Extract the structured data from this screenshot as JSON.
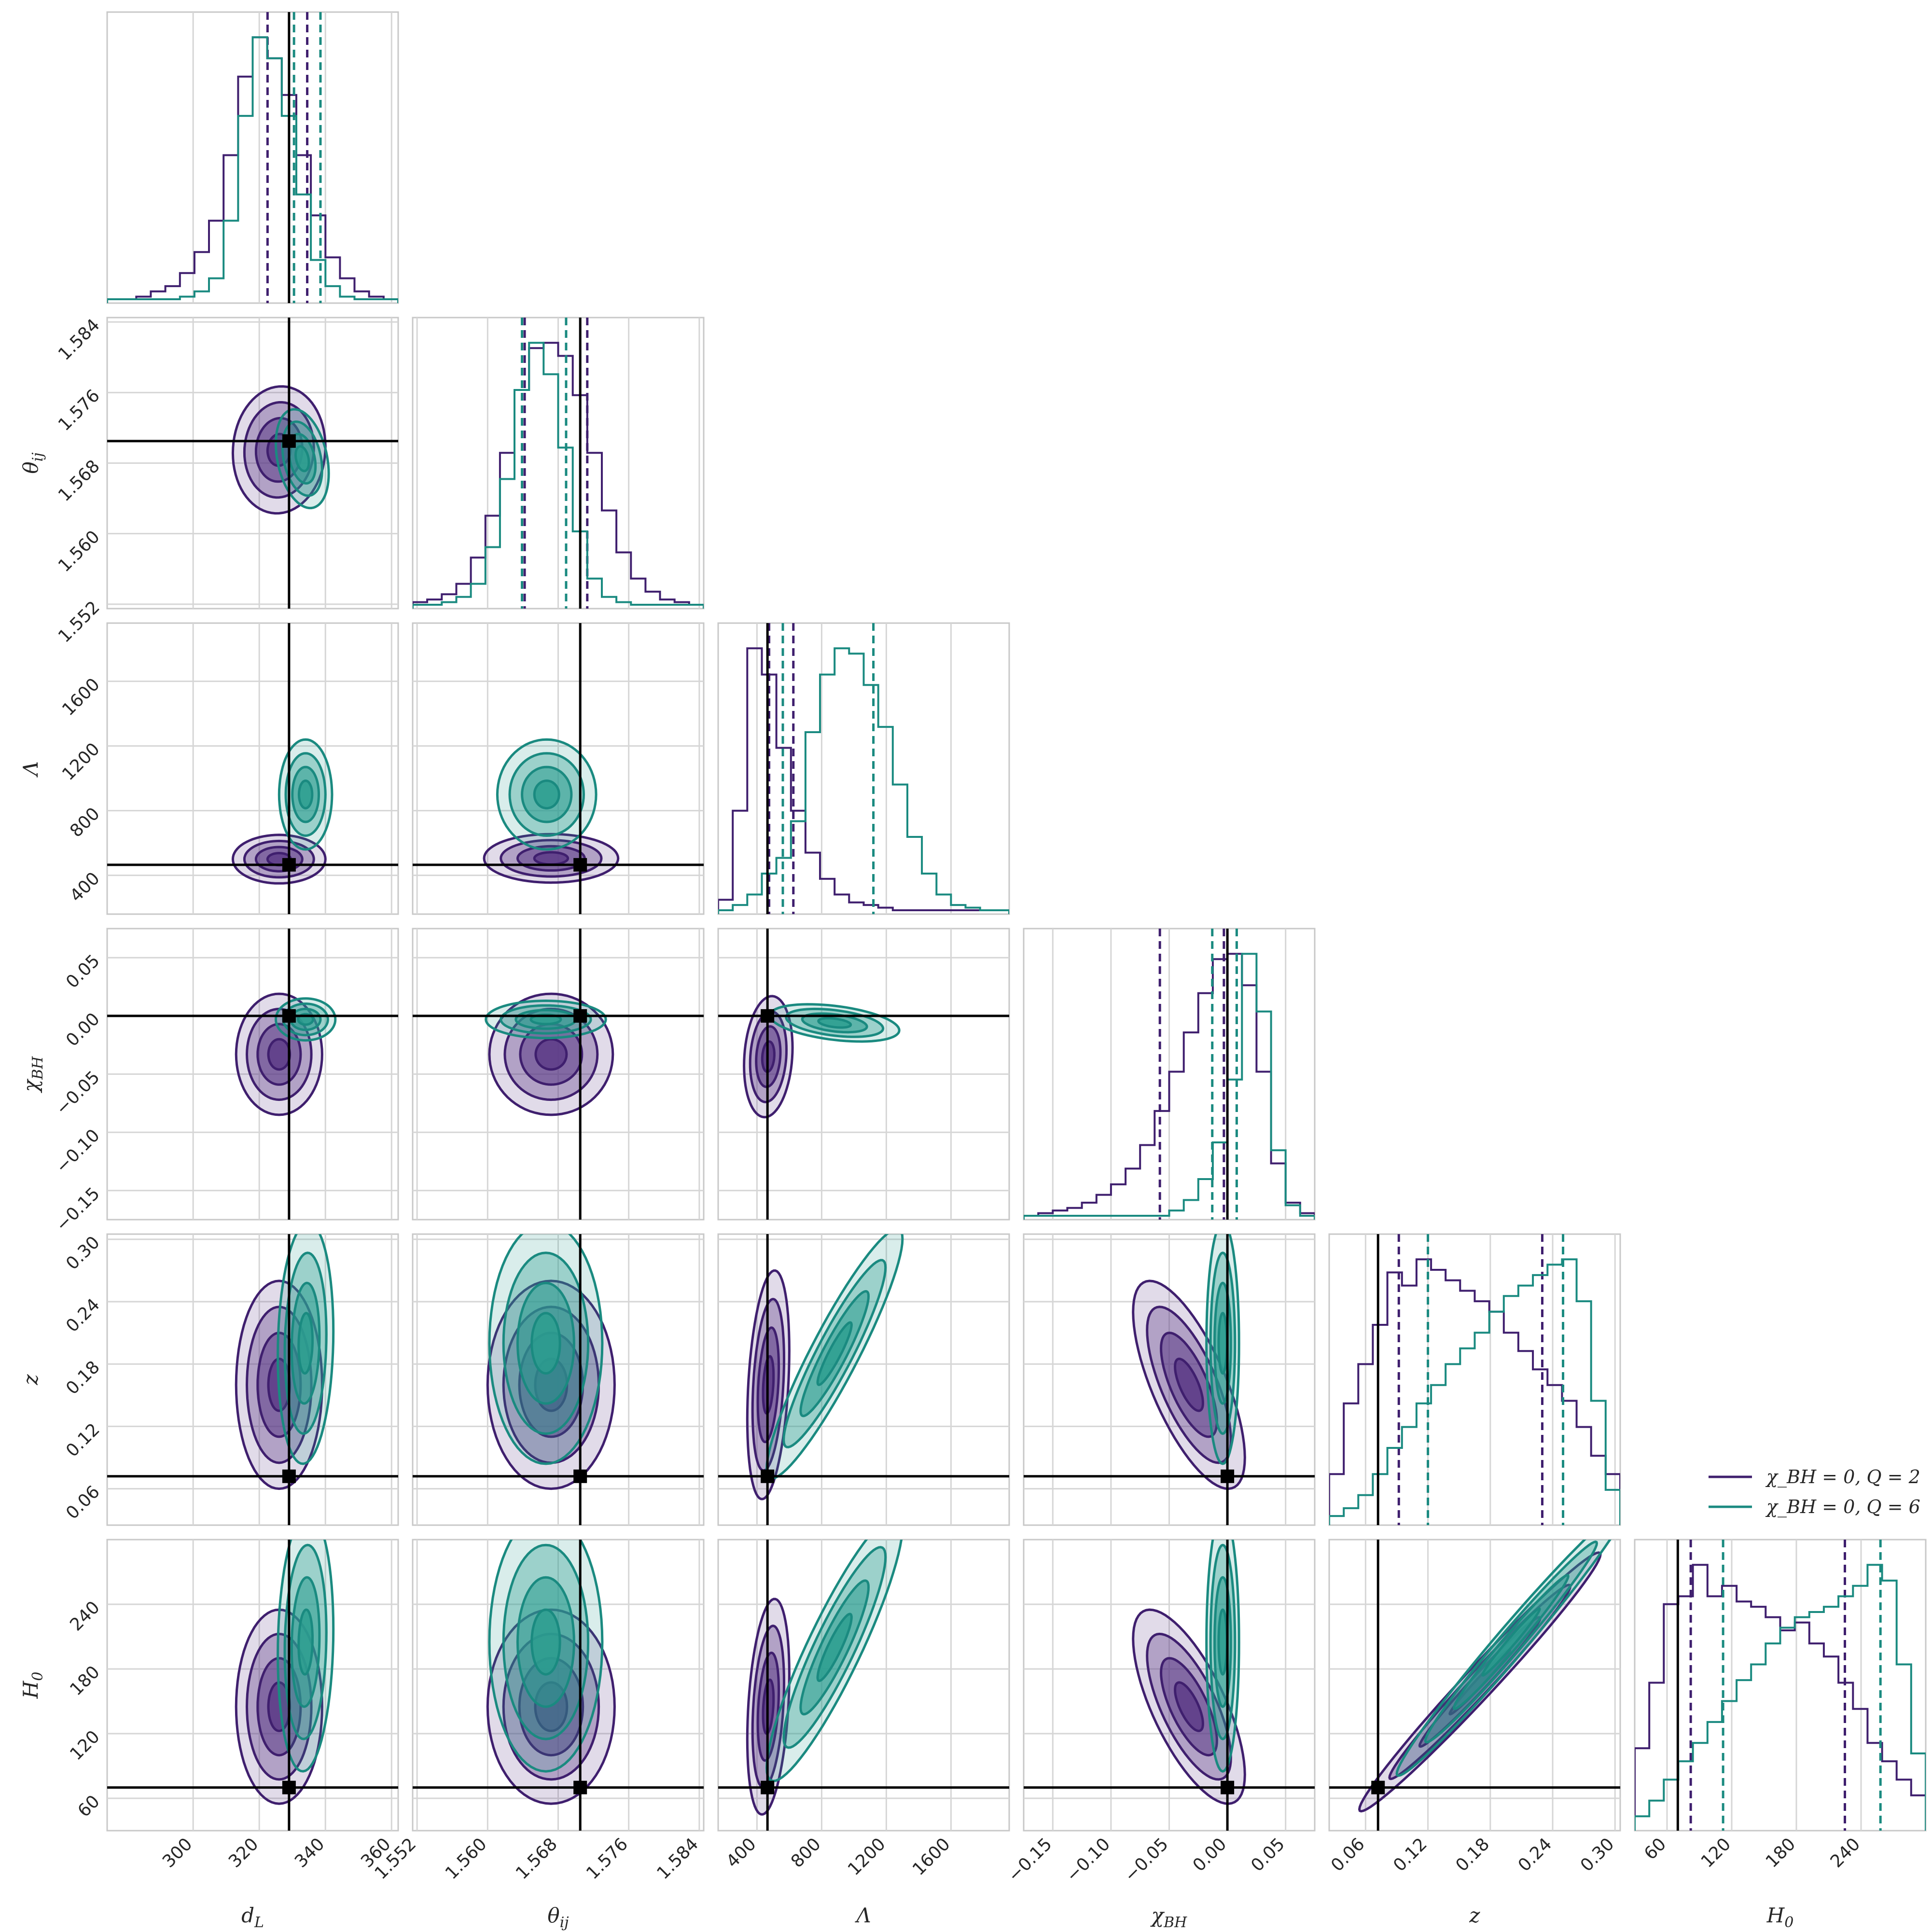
{
  "chart_data": {
    "type": "corner",
    "title": "",
    "parameters": [
      {
        "key": "dL",
        "label": "d_L",
        "range": [
          274,
          362
        ],
        "ticks": [
          300,
          320,
          340,
          360
        ],
        "tick_labels": [
          "300",
          "320",
          "340",
          "360"
        ],
        "truth": 329
      },
      {
        "key": "theta",
        "label": "θ_ij",
        "range": [
          1.5515,
          1.5845
        ],
        "ticks": [
          1.552,
          1.56,
          1.568,
          1.576,
          1.584
        ],
        "tick_labels": [
          "1.552",
          "1.560",
          "1.568",
          "1.576",
          "1.584"
        ],
        "truth": 1.5705
      },
      {
        "key": "Lambda",
        "label": "Λ",
        "range": [
          160,
          1960
        ],
        "ticks": [
          400,
          800,
          1200,
          1600
        ],
        "tick_labels": [
          "400",
          "800",
          "1200",
          "1600"
        ],
        "truth": 465
      },
      {
        "key": "chi",
        "label": "χ_BH",
        "range": [
          -0.175,
          0.075
        ],
        "ticks": [
          -0.15,
          -0.1,
          -0.05,
          0.0,
          0.05
        ],
        "tick_labels": [
          "−0.15",
          "−0.10",
          "−0.05",
          "0.00",
          "0.05"
        ],
        "truth": 0.0
      },
      {
        "key": "z",
        "label": "z",
        "range": [
          0.025,
          0.305
        ],
        "ticks": [
          0.06,
          0.12,
          0.18,
          0.24,
          0.3
        ],
        "tick_labels": [
          "0.06",
          "0.12",
          "0.18",
          "0.24",
          "0.30"
        ],
        "truth": 0.072
      },
      {
        "key": "H0",
        "label": "H_0",
        "range": [
          30,
          300
        ],
        "ticks": [
          60,
          120,
          180,
          240
        ],
        "tick_labels": [
          "60",
          "120",
          "180",
          "240"
        ],
        "truth": 70
      }
    ],
    "series": [
      {
        "name": "χ_BH = 0, Q = 2",
        "color": "#3f1f6e",
        "fill": "#5b3a86",
        "quantiles": {
          "dL": [
            322.5,
            334.5
          ],
          "theta": [
            1.5642,
            1.5713
          ],
          "Lambda": [
            475,
            625
          ],
          "chi": [
            -0.058,
            -0.003
          ],
          "z": [
            0.092,
            0.23
          ],
          "H0": [
            82,
            225
          ]
        },
        "hist": {
          "dL": [
            0,
            0,
            1,
            3,
            5,
            10,
            18,
            30,
            55,
            85,
            100,
            92,
            78,
            55,
            32,
            16,
            8,
            3,
            1,
            0
          ],
          "theta": [
            1,
            2,
            4,
            8,
            18,
            34,
            58,
            82,
            98,
            100,
            95,
            80,
            58,
            36,
            20,
            10,
            5,
            2,
            1,
            0
          ],
          "Lambda": [
            4,
            38,
            100,
            90,
            62,
            38,
            22,
            12,
            6,
            3,
            2,
            1,
            0,
            0,
            0,
            0,
            0,
            0,
            0,
            0
          ],
          "chi": [
            0,
            1,
            2,
            3,
            5,
            8,
            12,
            18,
            27,
            40,
            55,
            70,
            85,
            98,
            100,
            88,
            55,
            20,
            5,
            1
          ],
          "z": [
            18,
            45,
            60,
            75,
            95,
            90,
            100,
            96,
            92,
            88,
            84,
            80,
            72,
            65,
            58,
            52,
            46,
            36,
            25,
            18
          ],
          "H0": [
            30,
            55,
            85,
            88,
            100,
            88,
            92,
            86,
            84,
            80,
            75,
            78,
            70,
            65,
            55,
            45,
            32,
            25,
            18,
            12
          ]
        },
        "blobs": [
          {
            "x": "dL",
            "y": "theta",
            "mx": 326,
            "my": 1.5695,
            "sx": 7,
            "sy": 0.0036,
            "rho": 0.05
          },
          {
            "x": "dL",
            "y": "Lambda",
            "mx": 326,
            "my": 500,
            "sx": 7,
            "sy": 75,
            "rho": 0.0
          },
          {
            "x": "theta",
            "y": "Lambda",
            "mx": 1.5672,
            "my": 505,
            "sx": 0.0038,
            "sy": 75,
            "rho": 0.0
          },
          {
            "x": "dL",
            "y": "chi",
            "mx": 326,
            "my": -0.033,
            "sx": 6.5,
            "sy": 0.026,
            "rho": 0.0
          },
          {
            "x": "theta",
            "y": "chi",
            "mx": 1.5672,
            "my": -0.033,
            "sx": 0.0035,
            "sy": 0.026,
            "rho": 0.0
          },
          {
            "x": "Lambda",
            "y": "chi",
            "mx": 470,
            "my": -0.035,
            "sx": 75,
            "sy": 0.026,
            "rho": 0.15
          },
          {
            "x": "dL",
            "y": "z",
            "mx": 326,
            "my": 0.16,
            "sx": 6.5,
            "sy": 0.05,
            "rho": 0.0
          },
          {
            "x": "theta",
            "y": "z",
            "mx": 1.5672,
            "my": 0.16,
            "sx": 0.0036,
            "sy": 0.05,
            "rho": 0.0
          },
          {
            "x": "Lambda",
            "y": "z",
            "mx": 470,
            "my": 0.16,
            "sx": 65,
            "sy": 0.055,
            "rho": 0.3
          },
          {
            "x": "chi",
            "y": "z",
            "mx": -0.033,
            "my": 0.16,
            "sx": 0.024,
            "sy": 0.05,
            "rho": -0.7
          },
          {
            "x": "dL",
            "y": "H0",
            "mx": 326,
            "my": 145,
            "sx": 6.5,
            "sy": 45,
            "rho": 0.0
          },
          {
            "x": "theta",
            "y": "H0",
            "mx": 1.5672,
            "my": 145,
            "sx": 0.0036,
            "sy": 45,
            "rho": 0.0
          },
          {
            "x": "Lambda",
            "y": "H0",
            "mx": 470,
            "my": 145,
            "sx": 65,
            "sy": 50,
            "rho": 0.3
          },
          {
            "x": "chi",
            "y": "H0",
            "mx": -0.033,
            "my": 145,
            "sx": 0.024,
            "sy": 45,
            "rho": -0.7
          },
          {
            "x": "z",
            "y": "H0",
            "mx": 0.17,
            "my": 168,
            "sx": 0.058,
            "sy": 60,
            "rho": 0.985
          }
        ]
      },
      {
        "name": "χ_BH = 0, Q = 6",
        "color": "#1a8a80",
        "fill": "#2a9d8f",
        "quantiles": {
          "dL": [
            330.5,
            338.5
          ],
          "theta": [
            1.5639,
            1.5689
          ],
          "Lambda": [
            560,
            1120
          ],
          "chi": [
            -0.013,
            0.008
          ],
          "z": [
            0.12,
            0.25
          ],
          "H0": [
            112,
            258
          ]
        },
        "hist": {
          "dL": [
            0,
            0,
            0,
            0,
            0,
            1,
            3,
            8,
            30,
            70,
            100,
            92,
            70,
            40,
            15,
            5,
            1,
            0,
            0,
            0
          ],
          "theta": [
            0,
            0,
            1,
            3,
            8,
            22,
            48,
            82,
            100,
            88,
            60,
            28,
            10,
            3,
            1,
            0,
            0,
            0,
            0,
            0
          ],
          "Lambda": [
            0,
            2,
            6,
            14,
            20,
            34,
            68,
            90,
            100,
            98,
            86,
            70,
            48,
            28,
            14,
            6,
            2,
            1,
            0,
            0
          ],
          "chi": [
            0,
            0,
            0,
            0,
            0,
            0,
            0,
            0,
            0,
            0,
            2,
            6,
            14,
            28,
            52,
            100,
            78,
            25,
            4,
            0
          ],
          "z": [
            2,
            5,
            10,
            18,
            28,
            36,
            45,
            52,
            60,
            66,
            72,
            80,
            86,
            90,
            94,
            98,
            100,
            84,
            46,
            12
          ],
          "H0": [
            4,
            10,
            18,
            25,
            32,
            40,
            48,
            56,
            62,
            70,
            76,
            80,
            82,
            84,
            88,
            92,
            100,
            94,
            62,
            28
          ]
        },
        "blobs": [
          {
            "x": "dL",
            "y": "theta",
            "mx": 333,
            "my": 1.5685,
            "sx": 4,
            "sy": 0.0028,
            "rho": -0.3
          },
          {
            "x": "dL",
            "y": "Lambda",
            "mx": 334,
            "my": 900,
            "sx": 4,
            "sy": 170,
            "rho": 0.0
          },
          {
            "x": "theta",
            "y": "Lambda",
            "mx": 1.5667,
            "my": 900,
            "sx": 0.0028,
            "sy": 170,
            "rho": 0.0
          },
          {
            "x": "dL",
            "y": "chi",
            "mx": 334,
            "my": -0.003,
            "sx": 4.5,
            "sy": 0.009,
            "rho": 0.0
          },
          {
            "x": "theta",
            "y": "chi",
            "mx": 1.5666,
            "my": -0.003,
            "sx": 0.0034,
            "sy": 0.008,
            "rho": 0.0
          },
          {
            "x": "Lambda",
            "y": "chi",
            "mx": 880,
            "my": -0.006,
            "sx": 200,
            "sy": 0.008,
            "rho": -0.4
          },
          {
            "x": "dL",
            "y": "z",
            "mx": 334,
            "my": 0.2,
            "sx": 4.2,
            "sy": 0.058,
            "rho": 0.1
          },
          {
            "x": "theta",
            "y": "z",
            "mx": 1.5666,
            "my": 0.2,
            "sx": 0.0032,
            "sy": 0.058,
            "rho": 0.0
          },
          {
            "x": "Lambda",
            "y": "z",
            "mx": 880,
            "my": 0.19,
            "sx": 210,
            "sy": 0.06,
            "rho": 0.92
          },
          {
            "x": "chi",
            "y": "z",
            "mx": -0.004,
            "my": 0.2,
            "sx": 0.007,
            "sy": 0.058,
            "rho": 0.0
          },
          {
            "x": "dL",
            "y": "H0",
            "mx": 334,
            "my": 205,
            "sx": 4.2,
            "sy": 60,
            "rho": 0.1
          },
          {
            "x": "theta",
            "y": "H0",
            "mx": 1.5666,
            "my": 205,
            "sx": 0.0032,
            "sy": 60,
            "rho": 0.0
          },
          {
            "x": "Lambda",
            "y": "H0",
            "mx": 880,
            "my": 200,
            "sx": 210,
            "sy": 62,
            "rho": 0.9
          },
          {
            "x": "chi",
            "y": "H0",
            "mx": -0.004,
            "my": 205,
            "sx": 0.007,
            "sy": 60,
            "rho": 0.0
          },
          {
            "x": "z",
            "y": "H0",
            "mx": 0.2,
            "my": 205,
            "sx": 0.055,
            "sy": 62,
            "rho": 0.985
          }
        ]
      }
    ],
    "contour_levels_sigma": [
      0.5,
      1.0,
      1.5,
      2.0
    ],
    "contour_alphas": [
      0.18,
      0.35,
      0.55,
      0.8
    ],
    "truth_color": "#000000",
    "grid": true,
    "legend_placement": "right, beside the z histogram"
  },
  "legend": {
    "items": [
      {
        "label": "χ_BH = 0, Q = 2",
        "color": "#3f1f6e"
      },
      {
        "label": "χ_BH = 0, Q = 6",
        "color": "#1a8a80"
      }
    ]
  }
}
